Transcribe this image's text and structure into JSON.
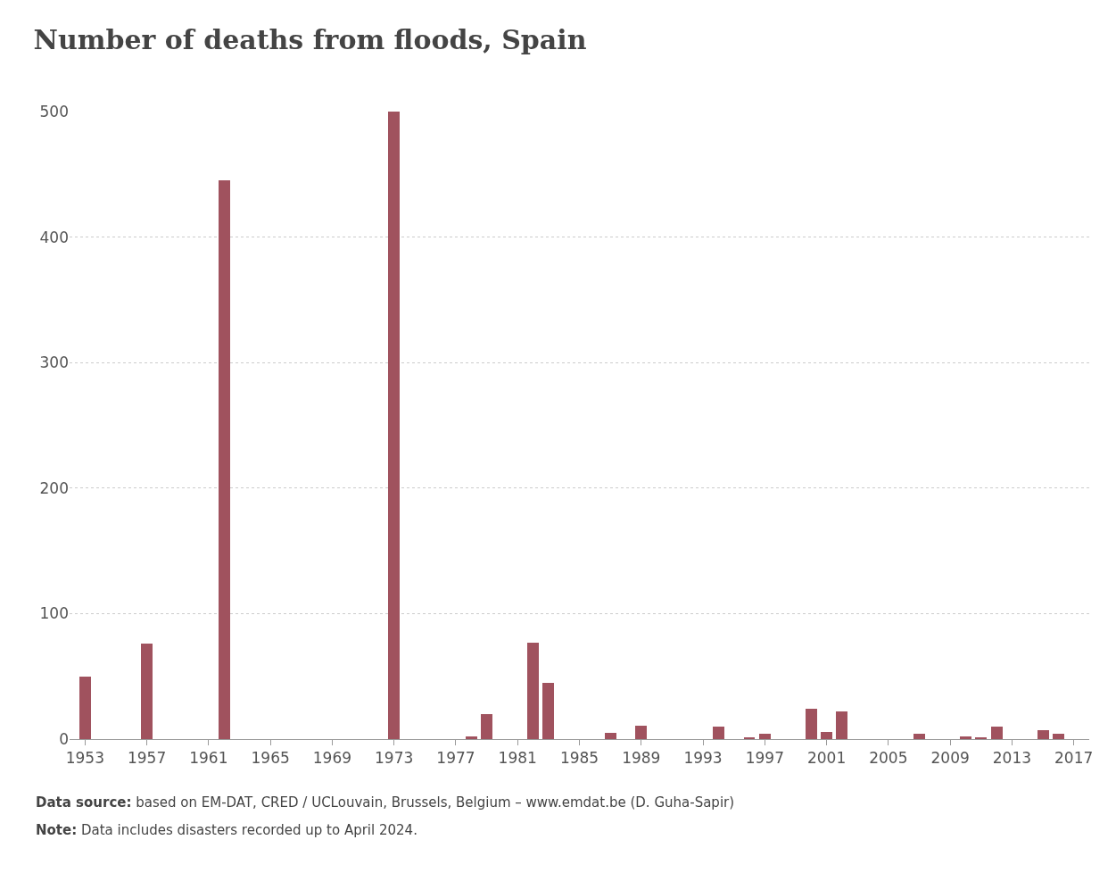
{
  "chart_data": {
    "type": "bar",
    "title": "Number of deaths from floods, Spain",
    "x": [
      1953,
      1957,
      1962,
      1973,
      1978,
      1979,
      1982,
      1983,
      1987,
      1989,
      1994,
      1996,
      1997,
      2000,
      2001,
      2002,
      2007,
      2010,
      2011,
      2012,
      2015,
      2016
    ],
    "values": [
      50,
      76,
      445,
      500,
      2,
      20,
      77,
      45,
      5,
      11,
      10,
      1,
      4,
      24,
      6,
      22,
      4,
      2,
      1,
      10,
      7,
      4
    ],
    "color": "#a0525e",
    "xlim": [
      1952,
      2018
    ],
    "xticks": [
      1953,
      1957,
      1961,
      1965,
      1969,
      1973,
      1977,
      1981,
      1985,
      1989,
      1993,
      1997,
      2001,
      2005,
      2009,
      2013,
      2017
    ],
    "ylim": [
      0,
      500
    ],
    "yticks": [
      0,
      100,
      200,
      300,
      400,
      500
    ],
    "grid": "y",
    "legend": false,
    "annotations": [
      "Data source: based on EM-DAT, CRED / UCLouvain, Brussels, Belgium – www.emdat.be (D. Guha-Sapir)",
      "Note: Data includes disasters recorded up to April 2024."
    ]
  }
}
